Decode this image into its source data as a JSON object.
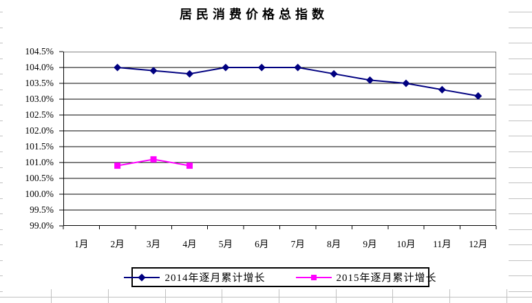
{
  "chart_data": {
    "type": "line",
    "title": "居民消费价格总指数",
    "categories": [
      "1月",
      "2月",
      "3月",
      "4月",
      "5月",
      "6月",
      "7月",
      "8月",
      "9月",
      "10月",
      "11月",
      "12月"
    ],
    "series": [
      {
        "name": "2014年逐月累计增长",
        "color": "#000080",
        "marker": "diamond",
        "values": [
          null,
          104.0,
          103.9,
          103.8,
          104.0,
          104.0,
          104.0,
          103.8,
          103.6,
          103.5,
          103.3,
          103.1
        ]
      },
      {
        "name": "2015年逐月累计增长",
        "color": "#FF00FF",
        "marker": "square",
        "values": [
          null,
          100.9,
          101.1,
          100.9,
          null,
          null,
          null,
          null,
          null,
          null,
          null,
          null
        ]
      }
    ],
    "unit": "%",
    "ylim": [
      99.0,
      104.5
    ],
    "ytick_step": 0.5,
    "yticks": [
      "104.5%",
      "104.0%",
      "103.5%",
      "103.0%",
      "102.5%",
      "102.0%",
      "101.5%",
      "101.0%",
      "100.5%",
      "100.0%",
      "99.5%",
      "99.0%"
    ],
    "grid": "horizontal",
    "legend_position": "bottom"
  },
  "colors": {
    "axis": "#000000",
    "plot_border": "#808080",
    "gridline": "#000000",
    "sheet_gridline": "#c0c0c0",
    "chart_background": "#ffffff"
  }
}
